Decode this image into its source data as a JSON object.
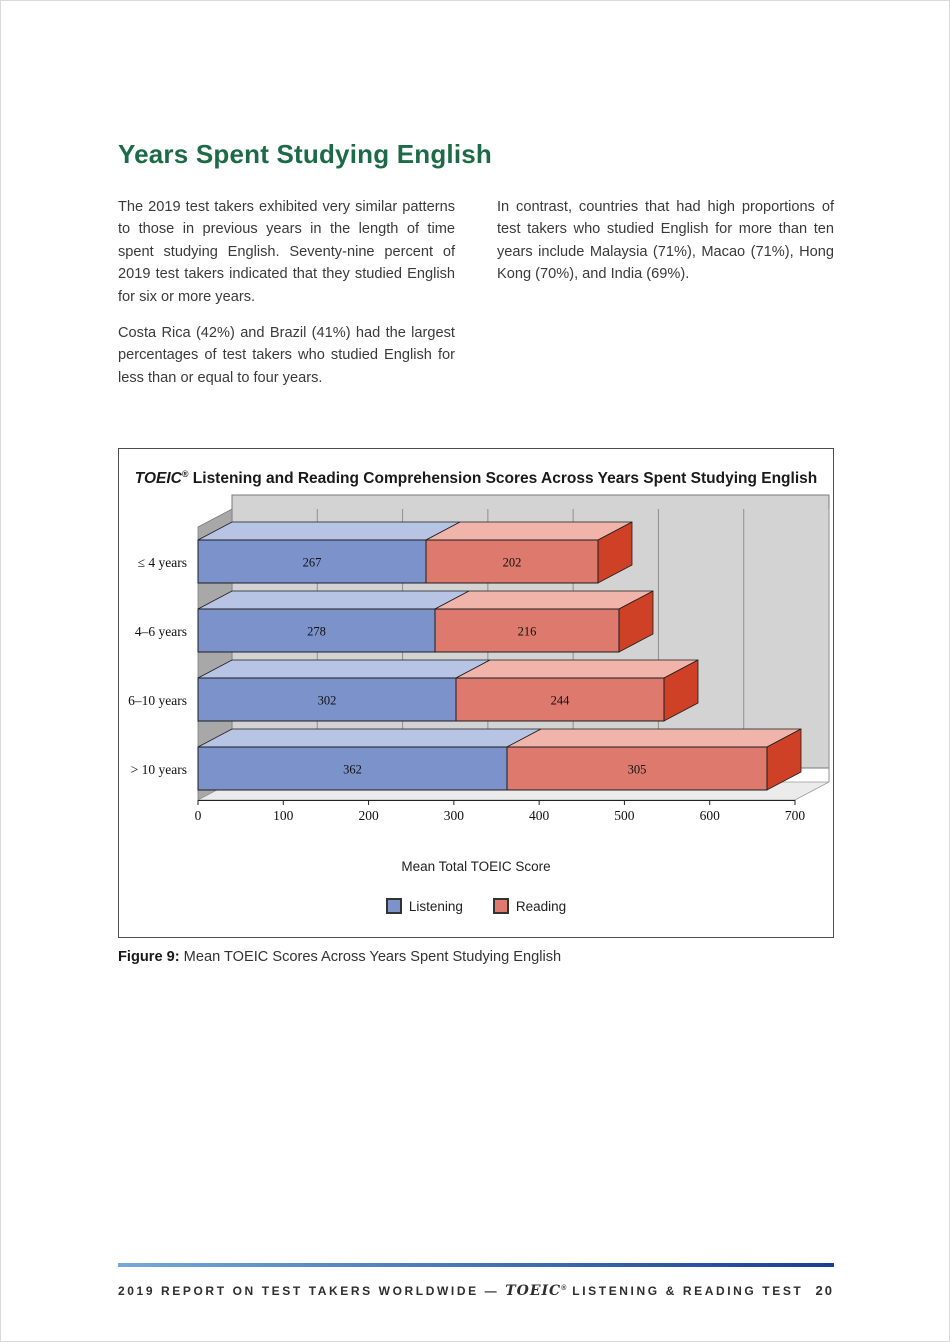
{
  "page": {
    "heading": "Years Spent Studying English",
    "paragraphs": {
      "col1_p1": "The 2019 test takers exhibited very similar patterns to those in previous years in the length of time spent studying English. Seventy-nine percent of 2019 test takers indicated that they studied English for six or more years.",
      "col1_p2": "Costa Rica (42%) and Brazil (41%) had the largest percentages of test takers who studied English for less than or equal to four years.",
      "col2_p1": "In contrast, countries that had high proportions of test takers who studied English for more than ten years include Malaysia (71%), Macao (71%), Hong Kong (70%), and India (69%)."
    },
    "caption": {
      "label": "Figure 9:",
      "text": " Mean TOEIC Scores Across Years Spent Studying English"
    },
    "footer": {
      "left_pre": "2019 REPORT ON TEST TAKERS WORLDWIDE — ",
      "logo": "TOEIC",
      "reg": "®",
      "left_post": " LISTENING & READING TEST",
      "page_number": "20"
    }
  },
  "chart_data": {
    "type": "bar",
    "variant": "horizontal-stacked-3d",
    "title_brand": "TOEIC",
    "title_reg": "®",
    "title_rest": " Listening and Reading Comprehension Scores Across Years Spent Studying English",
    "categories": [
      "≤ 4 years",
      "4–6 years",
      "6–10 years",
      "> 10 years"
    ],
    "series": [
      {
        "name": "Listening",
        "values": [
          267,
          278,
          302,
          362
        ]
      },
      {
        "name": "Reading",
        "values": [
          202,
          216,
          244,
          305
        ]
      }
    ],
    "xlabel": "Mean Total TOEIC Score",
    "xlim": [
      0,
      700
    ],
    "x_ticks": [
      0,
      100,
      200,
      300,
      400,
      500,
      600,
      700
    ],
    "legend": [
      "Listening",
      "Reading"
    ],
    "grid": true,
    "legend_position": "bottom",
    "colors": {
      "listening_front": "#7b92cb",
      "listening_top": "#b7c4e3",
      "reading_front": "#dd796d",
      "reading_top": "#f0b4ab",
      "reading_side": "#ce4127",
      "back_wall": "#d3d3d3",
      "left_wall": "#a8a8a8",
      "floor": "#ebebeb",
      "gridline": "#8f8f8f",
      "outline": "#1c1c1c",
      "heading_green": "#1c6b46"
    }
  }
}
